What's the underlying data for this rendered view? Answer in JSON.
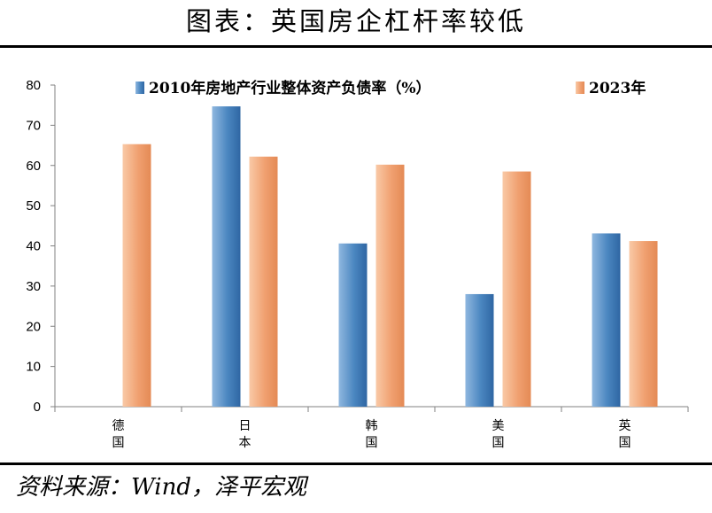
{
  "header": {
    "title": "图表：英国房企杠杆率较低"
  },
  "footer": {
    "source": "资料来源：Wind，泽平宏观"
  },
  "colors": {
    "series_2010": "#4a86c0",
    "series_2023": "#f0a070"
  },
  "chart_data": {
    "type": "bar",
    "title": "图表：英国房企杠杆率较低",
    "categories": [
      "德国",
      "日本",
      "韩国",
      "美国",
      "英国"
    ],
    "series": [
      {
        "name": "2010年房地产行业整体资产负债率（%）",
        "values": [
          null,
          74.7,
          40.6,
          28.0,
          43.1
        ]
      },
      {
        "name": "2023年",
        "values": [
          65.3,
          62.2,
          60.2,
          58.5,
          41.2
        ]
      }
    ],
    "xlabel": "",
    "ylabel": "",
    "ylim": [
      0,
      80
    ],
    "yticks": [
      "0",
      "10",
      "20",
      "30",
      "40",
      "50",
      "60",
      "70",
      "80"
    ],
    "grid": false,
    "legend": "top"
  }
}
